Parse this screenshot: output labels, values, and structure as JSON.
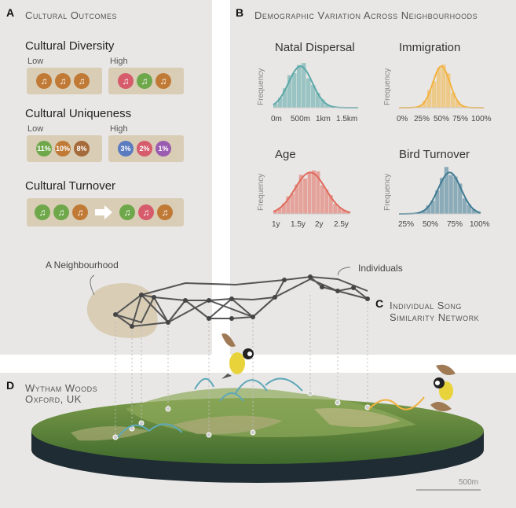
{
  "panelA": {
    "letter": "A",
    "title": "Cultural Outcomes",
    "diversity": {
      "title": "Cultural Diversity",
      "low": "Low",
      "high": "High",
      "low_colors": [
        "#c07a35",
        "#c07a35",
        "#c07a35"
      ],
      "high_colors": [
        "#d65c6c",
        "#6fa84a",
        "#c07a35"
      ]
    },
    "uniqueness": {
      "title": "Cultural Uniqueness",
      "low": "Low",
      "high": "High",
      "low_values": [
        "11%",
        "10%",
        "8%"
      ],
      "low_colors": [
        "#6fa84a",
        "#c07a35",
        "#a56a3a"
      ],
      "high_values": [
        "3%",
        "2%",
        "1%"
      ],
      "high_colors": [
        "#5b7bc0",
        "#d65c6c",
        "#9a5cb0"
      ]
    },
    "turnover": {
      "title": "Cultural Turnover",
      "before_colors": [
        "#6fa84a",
        "#6fa84a",
        "#c07a35"
      ],
      "after_colors": [
        "#6fa84a",
        "#d65c6c",
        "#c07a35"
      ]
    }
  },
  "panelB": {
    "letter": "B",
    "title": "Demographic Variation Across Neighbourhoods",
    "freq_label": "Frequency",
    "plots": [
      {
        "title": "Natal Dispersal",
        "color": "#5aa8a8",
        "ticks": [
          "0m",
          "500m",
          "1km",
          "1.5km"
        ]
      },
      {
        "title": "Immigration",
        "color": "#f2b240",
        "ticks": [
          "0%",
          "25%",
          "50%",
          "75%",
          "100%"
        ]
      },
      {
        "title": "Age",
        "color": "#e06a5c",
        "ticks": [
          "1y",
          "1.5y",
          "2y",
          "2.5y"
        ]
      },
      {
        "title": "Bird Turnover",
        "color": "#3f7a93",
        "ticks": [
          "25%",
          "50%",
          "75%",
          "100%"
        ]
      }
    ]
  },
  "panelC": {
    "letter": "C",
    "title_line1": "Individual Song",
    "title_line2": "Similarity Network",
    "neighbourhood_label": "A Neighbourhood",
    "individuals_label": "Individuals"
  },
  "panelD": {
    "letter": "D",
    "title_line1": "Wytham Woods",
    "title_line2": "Oxford, UK",
    "scale_label": "500m"
  }
}
